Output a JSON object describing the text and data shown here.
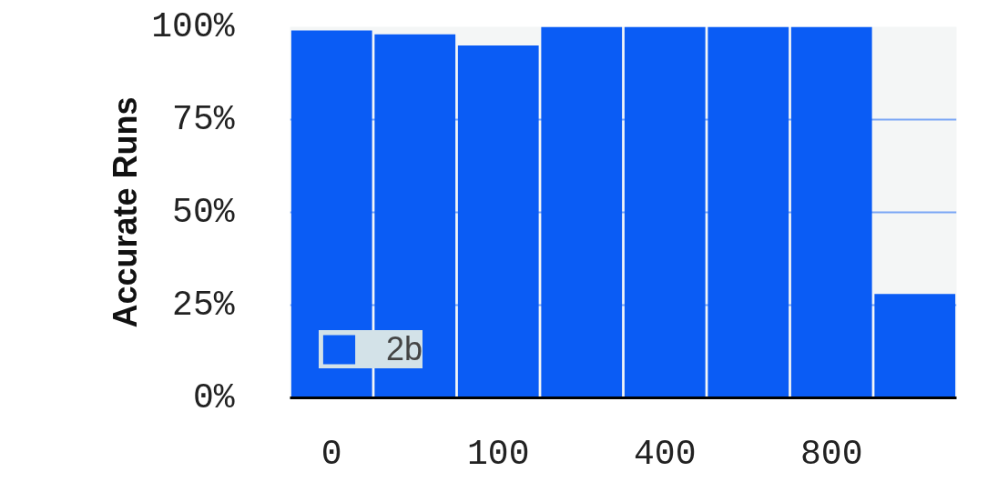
{
  "chart_data": {
    "type": "bar",
    "ylabel": "Accurate Runs",
    "categories": [
      "0",
      null,
      "100",
      null,
      "400",
      null,
      "800",
      null
    ],
    "series": [
      {
        "name": "2b",
        "color": "#0a5cf5",
        "values": [
          99,
          98,
          95,
          100,
          100,
          100,
          100,
          28
        ]
      }
    ],
    "ylim": [
      0,
      100
    ],
    "yticks": [
      {
        "value": 0,
        "label": "0%"
      },
      {
        "value": 25,
        "label": "25%"
      },
      {
        "value": 50,
        "label": "50%"
      },
      {
        "value": 75,
        "label": "75%"
      },
      {
        "value": 100,
        "label": "100%"
      }
    ],
    "grid": "y",
    "legend": "bottom left"
  }
}
